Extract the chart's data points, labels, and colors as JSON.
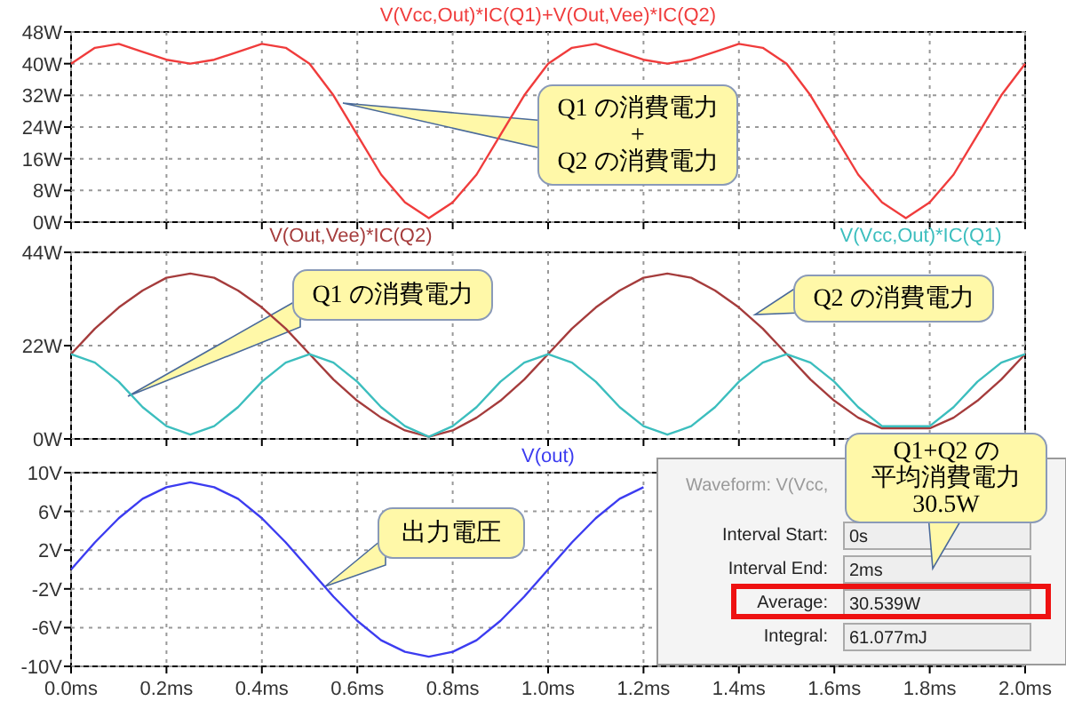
{
  "chart_data": [
    {
      "type": "line",
      "x": [
        0,
        0.05,
        0.1,
        0.15,
        0.2,
        0.25,
        0.3,
        0.35,
        0.4,
        0.45,
        0.5,
        0.55,
        0.6,
        0.65,
        0.7,
        0.75,
        0.8,
        0.85,
        0.9,
        0.95,
        1,
        1.05,
        1.1,
        1.15,
        1.2,
        1.25,
        1.3,
        1.35,
        1.4,
        1.45,
        1.5,
        1.55,
        1.6,
        1.65,
        1.7,
        1.75,
        1.8,
        1.85,
        1.9,
        1.95,
        2
      ],
      "series": [
        {
          "name": "V(Vcc,Out)*IC(Q1)+V(Out,Vee)*IC(Q2)",
          "color": "#f03c3c",
          "values": [
            40,
            44,
            45,
            43,
            41,
            40,
            41,
            43,
            45,
            44,
            40,
            32,
            22,
            12,
            5,
            1,
            5,
            12,
            22,
            32,
            40,
            44,
            45,
            43,
            41,
            40,
            41,
            43,
            45,
            44,
            40,
            32,
            22,
            12,
            5,
            1,
            5,
            12,
            22,
            32,
            40
          ]
        }
      ],
      "xlim": [
        0,
        2
      ],
      "xticks": [
        {
          "value": 0,
          "label": null
        },
        {
          "value": 0.2,
          "label": null
        },
        {
          "value": 0.4,
          "label": null
        },
        {
          "value": 0.6,
          "label": null
        },
        {
          "value": 0.8,
          "label": null
        },
        {
          "value": 1,
          "label": null
        },
        {
          "value": 1.2,
          "label": null
        },
        {
          "value": 1.4,
          "label": null
        },
        {
          "value": 1.6,
          "label": null
        },
        {
          "value": 1.8,
          "label": null
        },
        {
          "value": 2,
          "label": null
        }
      ],
      "ylim": [
        0,
        48
      ],
      "yticks": [
        {
          "value": 0,
          "label": "0W"
        },
        {
          "value": 8,
          "label": "8W"
        },
        {
          "value": 16,
          "label": "16W"
        },
        {
          "value": 24,
          "label": "24W"
        },
        {
          "value": 32,
          "label": "32W"
        },
        {
          "value": 40,
          "label": "40W"
        },
        {
          "value": 48,
          "label": "48W"
        }
      ],
      "grid": true,
      "tick_labels": "y",
      "annotations": [
        "Q1 の消費電力",
        "+",
        "Q2 の消費電力"
      ]
    },
    {
      "type": "line",
      "series": [
        {
          "name": "V(Out,Vee)*IC(Q2)",
          "color": "#a53c3c",
          "x": [
            0,
            0.05,
            0.1,
            0.15,
            0.2,
            0.25,
            0.3,
            0.35,
            0.4,
            0.45,
            0.5,
            0.55,
            0.6,
            0.65,
            0.7,
            0.75,
            0.8,
            0.85,
            0.9,
            0.95,
            1,
            1.05,
            1.1,
            1.15,
            1.2,
            1.25,
            1.3,
            1.35,
            1.4,
            1.45,
            1.5,
            1.55,
            1.6,
            1.65,
            1.7,
            1.8,
            1.85,
            1.9,
            1.95,
            2
          ],
          "values": [
            20,
            26,
            31,
            35,
            38,
            39,
            38,
            35,
            31,
            26,
            20,
            14,
            9,
            5,
            2,
            0.5,
            2,
            5,
            9,
            14,
            20,
            26,
            31,
            35,
            38,
            39,
            38,
            35,
            31,
            26,
            20,
            14,
            9,
            5,
            2.5,
            2.5,
            5,
            9,
            14,
            20
          ]
        },
        {
          "name": "V(Vcc,Out)*IC(Q1)",
          "color": "#3cbebe",
          "x": [
            0,
            0.05,
            0.1,
            0.15,
            0.2,
            0.25,
            0.3,
            0.35,
            0.4,
            0.45,
            0.5,
            0.55,
            0.6,
            0.65,
            0.7,
            0.75,
            0.8,
            0.85,
            0.9,
            0.95,
            1,
            1.05,
            1.1,
            1.15,
            1.2,
            1.25,
            1.3,
            1.35,
            1.4,
            1.45,
            1.5,
            1.55,
            1.6,
            1.65,
            1.7,
            1.8,
            1.85,
            1.9,
            1.95,
            2
          ],
          "values": [
            20,
            18,
            13.5,
            7.5,
            3,
            1,
            3,
            7.5,
            13.5,
            18,
            20,
            18,
            13.5,
            7.5,
            3,
            0.5,
            3,
            7.5,
            13.5,
            18,
            20,
            18,
            13.5,
            7.5,
            3,
            1,
            3,
            7.5,
            13.5,
            18,
            20,
            18,
            13.5,
            7.5,
            3,
            3,
            7.5,
            13.5,
            18,
            20
          ]
        }
      ],
      "xlim": [
        0,
        2
      ],
      "xticks": [
        {
          "value": 0,
          "label": null
        },
        {
          "value": 0.2,
          "label": null
        },
        {
          "value": 0.4,
          "label": null
        },
        {
          "value": 0.6,
          "label": null
        },
        {
          "value": 0.8,
          "label": null
        },
        {
          "value": 1,
          "label": null
        },
        {
          "value": 1.2,
          "label": null
        },
        {
          "value": 1.4,
          "label": null
        },
        {
          "value": 1.6,
          "label": null
        },
        {
          "value": 1.8,
          "label": null
        },
        {
          "value": 2,
          "label": null
        }
      ],
      "ylim": [
        0,
        44
      ],
      "yticks": [
        {
          "value": 0,
          "label": "0W"
        },
        {
          "value": 22,
          "label": "22W"
        },
        {
          "value": 44,
          "label": "44W"
        }
      ],
      "grid": true,
      "tick_labels": "y",
      "annotations": [
        "Q1 の消費電力",
        "Q2 の消費電力"
      ]
    },
    {
      "type": "line",
      "series": [
        {
          "name": "V(out)",
          "color": "#3c3cf0",
          "x": [
            0,
            0.05,
            0.1,
            0.15,
            0.2,
            0.25,
            0.3,
            0.35,
            0.4,
            0.45,
            0.5,
            0.55,
            0.6,
            0.65,
            0.7,
            0.75,
            0.8,
            0.85,
            0.9,
            0.95,
            1,
            1.05,
            1.1,
            1.15,
            1.2
          ],
          "values": [
            0,
            2.8,
            5.3,
            7.3,
            8.5,
            9,
            8.5,
            7.3,
            5.3,
            2.8,
            0,
            -2.8,
            -5.3,
            -7.3,
            -8.5,
            -9,
            -8.5,
            -7.3,
            -5.3,
            -2.8,
            0,
            2.8,
            5.3,
            7.3,
            8.5
          ]
        }
      ],
      "xlim": [
        0,
        2
      ],
      "xticks": [
        {
          "value": 0,
          "label": "0.0ms"
        },
        {
          "value": 0.2,
          "label": "0.2ms"
        },
        {
          "value": 0.4,
          "label": "0.4ms"
        },
        {
          "value": 0.6,
          "label": "0.6ms"
        },
        {
          "value": 0.8,
          "label": "0.8ms"
        },
        {
          "value": 1,
          "label": "1.0ms"
        },
        {
          "value": 1.2,
          "label": "1.2ms"
        },
        {
          "value": 1.4,
          "label": "1.4ms"
        },
        {
          "value": 1.6,
          "label": "1.6ms"
        },
        {
          "value": 1.8,
          "label": "1.8ms"
        },
        {
          "value": 2,
          "label": "2.0ms"
        }
      ],
      "ylim": [
        -10,
        10
      ],
      "yticks": [
        {
          "value": -10,
          "label": "-10V"
        },
        {
          "value": -6,
          "label": "-6V"
        },
        {
          "value": -2,
          "label": "-2V"
        },
        {
          "value": 2,
          "label": "2V"
        },
        {
          "value": 6,
          "label": "6V"
        },
        {
          "value": 10,
          "label": "10V"
        }
      ],
      "grid": true,
      "annotations": [
        "出力電圧",
        "Q1+Q2 の平均消費電力 30.5W",
        "Waveform: V(Vcc,",
        "Interval Start:",
        "0s",
        "Interval End:",
        "2ms",
        "Average:",
        "30.539W",
        "Integral:",
        "61.077mJ"
      ]
    }
  ]
}
